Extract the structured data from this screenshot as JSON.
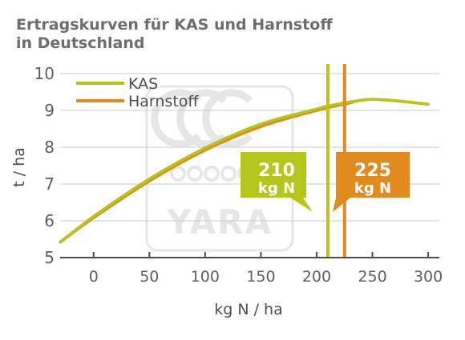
{
  "chart_data": {
    "type": "line",
    "title_lines": [
      "Ertragskurven für KAS und Harnstoff",
      "in Deutschland"
    ],
    "xlabel": "kg N / ha",
    "ylabel": "t / ha",
    "xlim": [
      -30,
      310
    ],
    "ylim": [
      5,
      10
    ],
    "xticks": [
      0,
      50,
      100,
      150,
      200,
      250,
      300
    ],
    "yticks": [
      5,
      6,
      7,
      8,
      9,
      10
    ],
    "grid": "horizontal",
    "legend_position": "top-left",
    "series": [
      {
        "name": "KAS",
        "color": "#b6c51a",
        "x": [
          -30,
          0,
          50,
          100,
          150,
          200,
          210,
          250,
          300
        ],
        "y": [
          5.42,
          6.12,
          7.14,
          7.98,
          8.63,
          9.04,
          9.12,
          9.3,
          9.17
        ]
      },
      {
        "name": "Harnstoff",
        "color": "#e08a1f",
        "x": [
          -30,
          0,
          50,
          100,
          150,
          200,
          225,
          250,
          300
        ],
        "y": [
          5.42,
          6.08,
          7.08,
          7.92,
          8.56,
          9.0,
          9.17,
          9.3,
          9.17
        ]
      }
    ],
    "annotations": [
      {
        "lines": [
          "210",
          "kg N"
        ],
        "x": 210,
        "color": "#b6c51a"
      },
      {
        "lines": [
          "225",
          "kg N"
        ],
        "x": 225,
        "color": "#e08a1f"
      }
    ]
  },
  "watermark": {
    "text": "YARA",
    "color": "#e6e6e6"
  }
}
